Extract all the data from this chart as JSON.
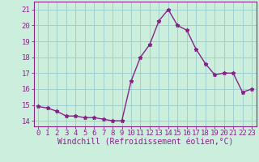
{
  "x": [
    0,
    1,
    2,
    3,
    4,
    5,
    6,
    7,
    8,
    9,
    10,
    11,
    12,
    13,
    14,
    15,
    16,
    17,
    18,
    19,
    20,
    21,
    22,
    23
  ],
  "y": [
    14.9,
    14.8,
    14.6,
    14.3,
    14.3,
    14.2,
    14.2,
    14.1,
    14.0,
    14.0,
    16.5,
    18.0,
    18.8,
    20.3,
    21.0,
    20.0,
    19.7,
    18.5,
    17.6,
    16.9,
    17.0,
    17.0,
    15.8,
    16.0
  ],
  "line_color": "#882288",
  "marker": "*",
  "marker_size": 3.5,
  "bg_color": "#cceedd",
  "grid_color": "#99cccc",
  "xlabel": "Windchill (Refroidissement éolien,°C)",
  "xlabel_fontsize": 7,
  "ylabel_ticks": [
    14,
    15,
    16,
    17,
    18,
    19,
    20,
    21
  ],
  "xlim": [
    -0.5,
    23.5
  ],
  "ylim": [
    13.65,
    21.5
  ],
  "tick_fontsize": 6.5,
  "line_width": 1.0
}
